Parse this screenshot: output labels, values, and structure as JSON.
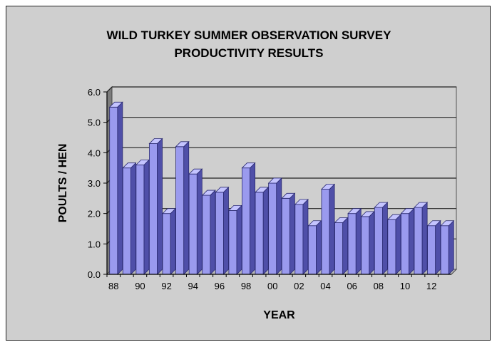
{
  "chart_data": {
    "type": "bar",
    "title": [
      "WILD TURKEY SUMMER OBSERVATION SURVEY",
      "PRODUCTIVITY RESULTS"
    ],
    "xlabel": "YEAR",
    "ylabel": "POULTS / HEN",
    "ylim": [
      0,
      6
    ],
    "yticks": [
      "0.0",
      "1.0",
      "2.0",
      "3.0",
      "4.0",
      "5.0",
      "6.0"
    ],
    "xtick_labels": [
      "88",
      "90",
      "92",
      "94",
      "96",
      "98",
      "00",
      "02",
      "04",
      "06",
      "08",
      "10",
      "12"
    ],
    "categories": [
      "88",
      "89",
      "90",
      "91",
      "92",
      "93",
      "94",
      "95",
      "96",
      "97",
      "98",
      "99",
      "00",
      "01",
      "02",
      "03",
      "04",
      "05",
      "06",
      "07",
      "08",
      "09",
      "10",
      "11",
      "12",
      "13"
    ],
    "values": [
      5.5,
      3.5,
      3.6,
      4.3,
      2.0,
      4.2,
      3.3,
      2.6,
      2.7,
      2.1,
      3.5,
      2.7,
      3.0,
      2.5,
      2.3,
      1.6,
      2.8,
      1.7,
      2.0,
      1.9,
      2.2,
      1.8,
      2.0,
      2.2,
      1.6,
      1.6
    ],
    "grid": true,
    "colors": {
      "bar_front": "#9a9aee",
      "bar_side": "#4f4fa8",
      "bar_top": "#c4c4ff",
      "wall": "#cfcfcf"
    }
  }
}
